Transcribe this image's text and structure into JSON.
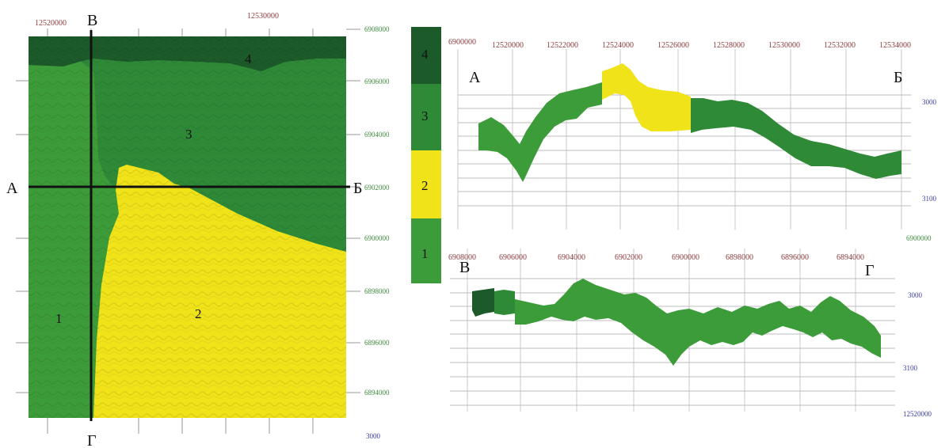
{
  "colors": {
    "zone1": "#3d9c3a",
    "zone2": "#f0e31a",
    "zone3": "#2f8a38",
    "zone4": "#1c5a2a",
    "section_line": "#111111"
  },
  "map": {
    "top_ticks": [
      "12520000",
      "12530000"
    ],
    "right_ticks": [
      "6908000",
      "6906000",
      "6904000",
      "6902000",
      "6900000",
      "6898000",
      "6896000",
      "6894000"
    ],
    "bottom_right_label": "3000",
    "letters": {
      "a": "А",
      "b": "Б",
      "v": "В",
      "g": "Г"
    },
    "zones": {
      "z1": "1",
      "z2": "2",
      "z3": "3",
      "z4": "4"
    }
  },
  "legend": {
    "items": [
      {
        "label": "4",
        "color": "#1c5a2a"
      },
      {
        "label": "3",
        "color": "#2f8a38"
      },
      {
        "label": "2",
        "color": "#f0e31a"
      },
      {
        "label": "1",
        "color": "#3d9c3a"
      }
    ]
  },
  "section_ab": {
    "left_top_label": "6900000",
    "top_ticks": [
      "12520000",
      "12522000",
      "12524000",
      "12526000",
      "12528000",
      "12530000",
      "12532000",
      "12534000"
    ],
    "start_letter": "А",
    "end_letter": "Б",
    "right_labels": [
      "3000",
      "3100"
    ],
    "bottom_right_label": "6900000"
  },
  "section_vg": {
    "top_ticks": [
      "6908000",
      "6906000",
      "6904000",
      "6902000",
      "6900000",
      "6898000",
      "6896000",
      "6894000"
    ],
    "start_letter": "В",
    "end_letter": "Г",
    "right_labels": [
      "3000",
      "3100"
    ],
    "bottom_right_label": "12520000"
  }
}
